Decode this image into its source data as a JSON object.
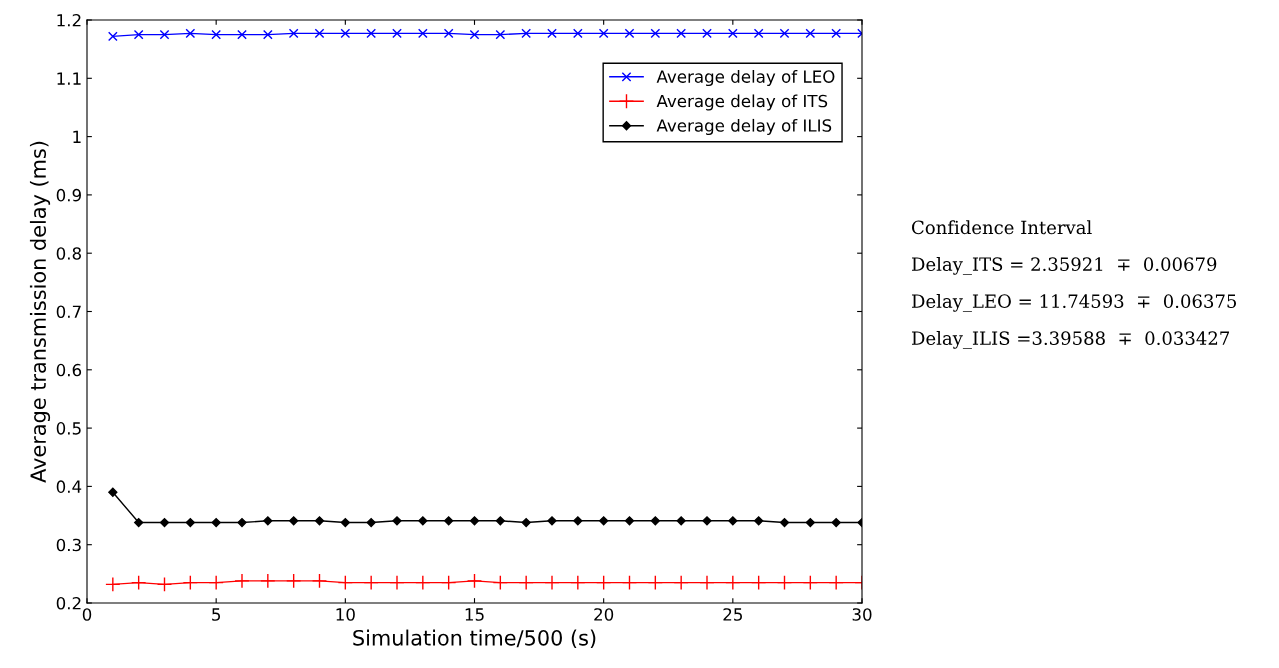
{
  "chart_data": {
    "type": "line",
    "xlabel": "Simulation time/500 (s)",
    "ylabel": "Average transmission delay (ms)",
    "x": [
      1,
      2,
      3,
      4,
      5,
      6,
      7,
      8,
      9,
      10,
      11,
      12,
      13,
      14,
      15,
      16,
      17,
      18,
      19,
      20,
      21,
      22,
      23,
      24,
      25,
      26,
      27,
      28,
      29,
      30
    ],
    "series": [
      {
        "name": "Average delay of LEO",
        "color": "#0000ff",
        "marker": "x",
        "values": [
          1.172,
          1.175,
          1.175,
          1.177,
          1.175,
          1.175,
          1.175,
          1.177,
          1.177,
          1.177,
          1.177,
          1.177,
          1.177,
          1.177,
          1.175,
          1.175,
          1.177,
          1.177,
          1.177,
          1.177,
          1.177,
          1.177,
          1.177,
          1.177,
          1.177,
          1.177,
          1.177,
          1.177,
          1.177,
          1.177
        ]
      },
      {
        "name": "Average delay of ITS",
        "color": "#ff0000",
        "marker": "cross",
        "values": [
          0.232,
          0.235,
          0.232,
          0.235,
          0.235,
          0.238,
          0.238,
          0.238,
          0.238,
          0.235,
          0.235,
          0.235,
          0.235,
          0.235,
          0.238,
          0.235,
          0.235,
          0.235,
          0.235,
          0.235,
          0.235,
          0.235,
          0.235,
          0.235,
          0.235,
          0.235,
          0.235,
          0.235,
          0.235,
          0.235
        ]
      },
      {
        "name": "Average delay of ILIS",
        "color": "#000000",
        "marker": "diamond",
        "values": [
          0.39,
          0.338,
          0.338,
          0.338,
          0.338,
          0.338,
          0.341,
          0.341,
          0.341,
          0.338,
          0.338,
          0.341,
          0.341,
          0.341,
          0.341,
          0.341,
          0.338,
          0.341,
          0.341,
          0.341,
          0.341,
          0.341,
          0.341,
          0.341,
          0.341,
          0.341,
          0.338,
          0.338,
          0.338,
          0.338
        ]
      }
    ],
    "xlim": [
      0,
      30
    ],
    "xticks": [
      0,
      5,
      10,
      15,
      20,
      25,
      30
    ],
    "ylim": [
      0.2,
      1.2
    ],
    "yticks": [
      0.2,
      0.3,
      0.4,
      0.5,
      0.6,
      0.7,
      0.8,
      0.9,
      1,
      1.1,
      1.2
    ],
    "grid": false,
    "legend": "top right",
    "annotations": [
      "Confidence Interval",
      "Delay_ITS = 2.35921  ∓  0.00679",
      "Delay_LEO = 11.74593  ∓  0.06375",
      "Delay_ILIS =3.39588  ∓  0.033427"
    ]
  }
}
